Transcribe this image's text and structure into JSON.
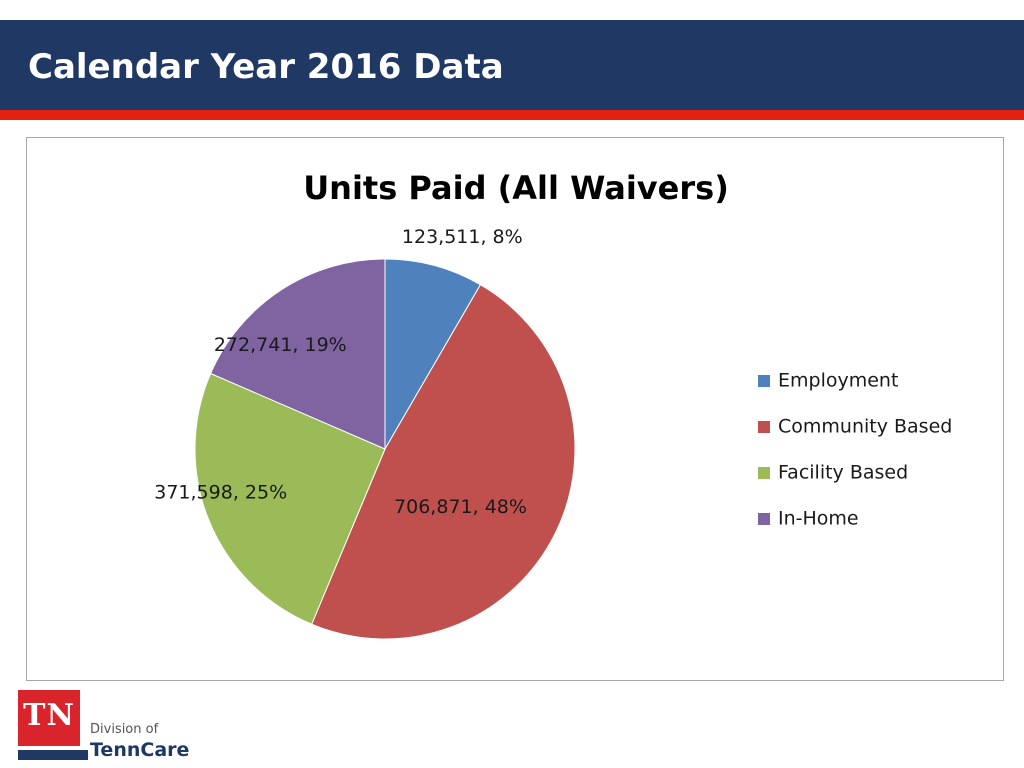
{
  "slide": {
    "title": "Calendar Year 2016 Data"
  },
  "logo": {
    "abbr": "TN",
    "division": "Division of",
    "name": "TennCare"
  },
  "colors": {
    "header": "#1f3864",
    "accent_rule": "#e32112"
  },
  "chart_data": {
    "type": "pie",
    "title": "Units Paid (All Waivers)",
    "legend_position": "right",
    "slices": [
      {
        "name": "Employment",
        "value": 123511,
        "value_label": "123,511",
        "percent": 8,
        "color": "#4f81bd"
      },
      {
        "name": "Community Based",
        "value": 706871,
        "value_label": "706,871",
        "percent": 48,
        "color": "#c0504d"
      },
      {
        "name": "Facility Based",
        "value": 371598,
        "value_label": "371,598",
        "percent": 25,
        "color": "#9bbb59"
      },
      {
        "name": "In-Home",
        "value": 272741,
        "value_label": "272,741",
        "percent": 19,
        "color": "#8064a2"
      }
    ]
  }
}
